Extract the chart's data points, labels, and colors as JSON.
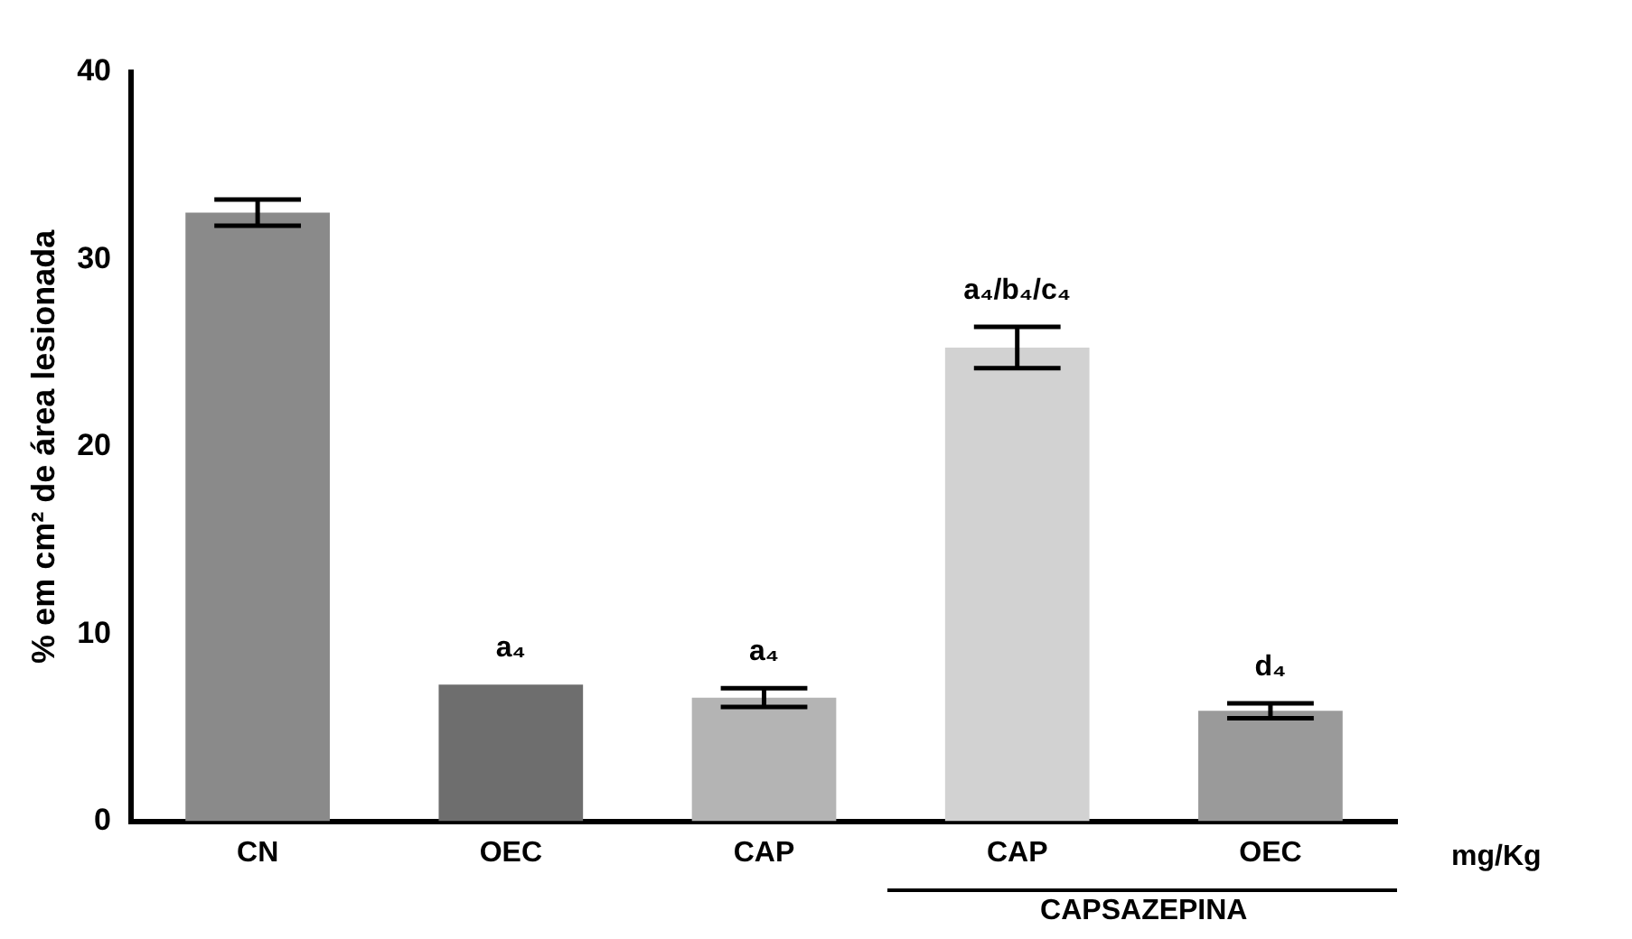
{
  "chart_data": {
    "type": "bar",
    "ylabel": "% em cm² de área lesionada",
    "xlabel": "mg/Kg",
    "categories": [
      "CN",
      "OEC",
      "CAP",
      "CAP",
      "OEC"
    ],
    "values": [
      32.5,
      7.3,
      6.6,
      25.3,
      5.9
    ],
    "errors": [
      0.7,
      null,
      0.5,
      1.1,
      0.4
    ],
    "value_labels": [
      null,
      "a₄",
      "a₄",
      "a₄/b₄/c₄",
      "d₄"
    ],
    "colors": [
      "#8a8a8a",
      "#6e6e6e",
      "#b4b4b4",
      "#d2d2d2",
      "#9a9a9a"
    ],
    "annotations": [
      "CAPSAZEPINA"
    ],
    "ylim": [
      0,
      40
    ],
    "yticks": [
      0,
      10,
      20,
      30,
      40
    ],
    "grid": false,
    "legend": false
  }
}
